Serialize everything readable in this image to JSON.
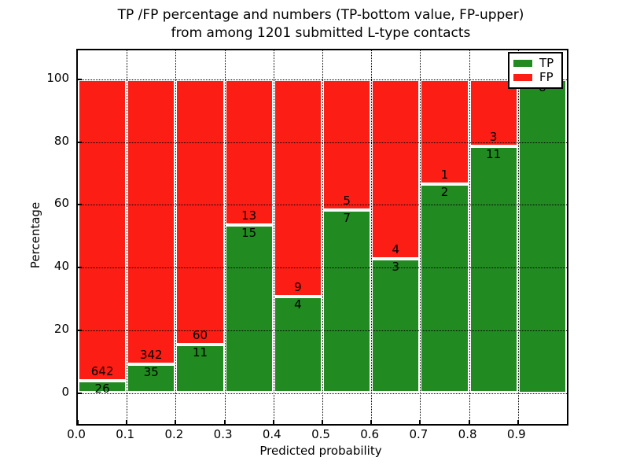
{
  "figure": {
    "title_line1": "TP /FP percentage and numbers (TP-bottom value, FP-upper)",
    "title_line2": "from among 1201 submitted L-type contacts",
    "xlabel": "Predicted probability",
    "ylabel": "Percentage",
    "background": "#ffffff"
  },
  "legend": {
    "position": "upper right",
    "items": [
      {
        "label": "TP",
        "color": "#218a21"
      },
      {
        "label": "FP",
        "color": "#fc1d14"
      }
    ]
  },
  "chart_data": {
    "type": "bar",
    "stacked": true,
    "normalized": "each bar totals 100%",
    "title": "TP /FP percentage and numbers (TP-bottom value, FP-upper)\nfrom among 1201 submitted L-type contacts",
    "xlabel": "Predicted probability",
    "ylabel": "Percentage",
    "total_contacts": 1201,
    "bin_width": 0.1,
    "categories": [
      "0.0-0.1",
      "0.1-0.2",
      "0.2-0.3",
      "0.3-0.4",
      "0.4-0.5",
      "0.5-0.6",
      "0.6-0.7",
      "0.7-0.8",
      "0.8-0.9",
      "0.9-1.0"
    ],
    "series": [
      {
        "name": "TP",
        "color": "#218a21",
        "counts": [
          26,
          35,
          11,
          15,
          4,
          7,
          3,
          2,
          11,
          8
        ]
      },
      {
        "name": "FP",
        "color": "#fc1d14",
        "counts": [
          642,
          342,
          60,
          13,
          9,
          5,
          4,
          1,
          3,
          0
        ]
      }
    ],
    "tp_percent": [
      3.9,
      9.3,
      15.5,
      53.6,
      30.8,
      58.3,
      42.9,
      66.7,
      78.6,
      100.0
    ],
    "bar_labels": {
      "tp": [
        "26",
        "35",
        "11",
        "15",
        "4",
        "7",
        "3",
        "2",
        "11",
        "8"
      ],
      "fp": [
        "642",
        "342",
        "60",
        "13",
        "9",
        "5",
        "4",
        "1",
        "3",
        null
      ]
    },
    "xticks": [
      "0.0",
      "0.1",
      "0.2",
      "0.3",
      "0.4",
      "0.5",
      "0.6",
      "0.7",
      "0.8",
      "0.9"
    ],
    "xtick_values": [
      0.0,
      0.1,
      0.2,
      0.3,
      0.4,
      0.5,
      0.6,
      0.7,
      0.8,
      0.9
    ],
    "yticks": [
      "0",
      "20",
      "40",
      "60",
      "80",
      "100"
    ],
    "ytick_values": [
      0,
      20,
      40,
      60,
      80,
      100
    ],
    "xlim": [
      0.0,
      1.0
    ],
    "ylim": [
      0,
      100
    ],
    "grid": "dotted black, horizontal and vertical",
    "legend_position": "upper right",
    "bar_edge_color": "#ffffff"
  }
}
